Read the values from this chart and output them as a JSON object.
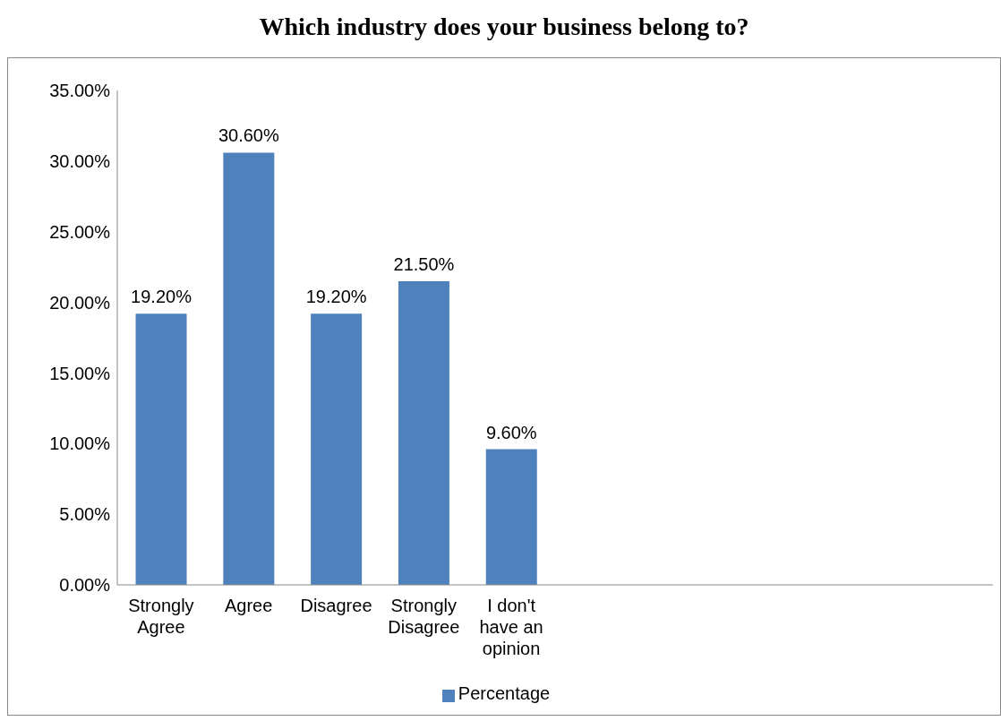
{
  "chart_data": {
    "type": "bar",
    "title": "Which industry does your business belong to?",
    "categories": [
      "Strongly Agree",
      "Agree",
      "Disagree",
      "Strongly Disagree",
      "I don't have an opinion",
      null,
      null,
      null,
      null,
      null
    ],
    "series": [
      {
        "name": "Percentage",
        "color": "#4f81bd",
        "values": [
          19.2,
          30.6,
          19.2,
          21.5,
          9.6,
          null,
          null,
          null,
          null,
          null
        ],
        "value_labels": [
          "19.20%",
          "30.60%",
          "19.20%",
          "21.50%",
          "9.60%",
          null,
          null,
          null,
          null,
          null
        ]
      }
    ],
    "ylim": [
      0,
      35
    ],
    "yticks": [
      {
        "value": 0,
        "label": "0.00%"
      },
      {
        "value": 5,
        "label": "5.00%"
      },
      {
        "value": 10,
        "label": "10.00%"
      },
      {
        "value": 15,
        "label": "15.00%"
      },
      {
        "value": 20,
        "label": "20.00%"
      },
      {
        "value": 25,
        "label": "25.00%"
      },
      {
        "value": 30,
        "label": "30.00%"
      },
      {
        "value": 35,
        "label": "35.00%"
      }
    ],
    "grid": false,
    "legend": "bottom"
  }
}
